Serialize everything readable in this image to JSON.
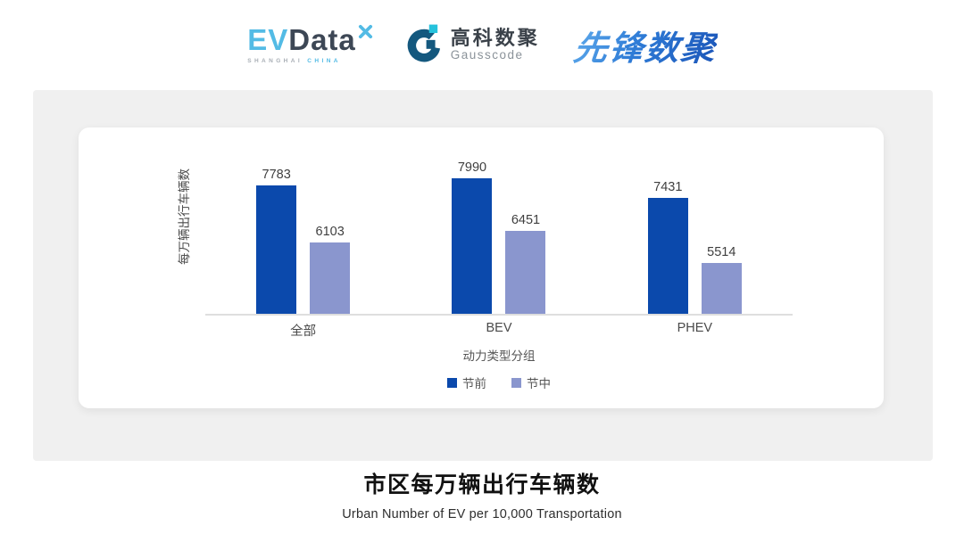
{
  "header": {
    "evdata": {
      "ev": "EV",
      "data": "Data",
      "sub_left": "SHANGHAI",
      "sub_right": "CHINA"
    },
    "gausscode": {
      "cn": "高科数聚",
      "en": "Gausscode"
    },
    "xianfeng": {
      "text": "先锋数聚"
    }
  },
  "chart_data": {
    "type": "bar",
    "categories": [
      "全部",
      "BEV",
      "PHEV"
    ],
    "series": [
      {
        "name": "节前",
        "color": "#0B49AC",
        "values": [
          7783,
          7990,
          7431
        ]
      },
      {
        "name": "节中",
        "color": "#8A96CE",
        "values": [
          6103,
          6451,
          5514
        ]
      }
    ],
    "ylabel": "每万辆出行车辆数",
    "xlabel": "动力类型分组",
    "ylim": [
      4000,
      8500
    ],
    "grid": false,
    "legend_position": "bottom",
    "value_labels": true
  },
  "footer": {
    "title": "市区每万辆出行车辆数",
    "subtitle": "Urban Number of EV per 10,000 Transportation"
  },
  "colors": {
    "series_pre_holiday": "#0B49AC",
    "series_mid_holiday": "#8A96CE",
    "panel_bg": "#F0F0F0",
    "baseline": "#DEDEDE",
    "logo_light_blue": "#53BBE5",
    "logo_dark_slate": "#3D4755",
    "gauss_ring": "#14587E",
    "gauss_cyan": "#25C2DC",
    "xianfeng_blue": "#2E7BD6"
  }
}
